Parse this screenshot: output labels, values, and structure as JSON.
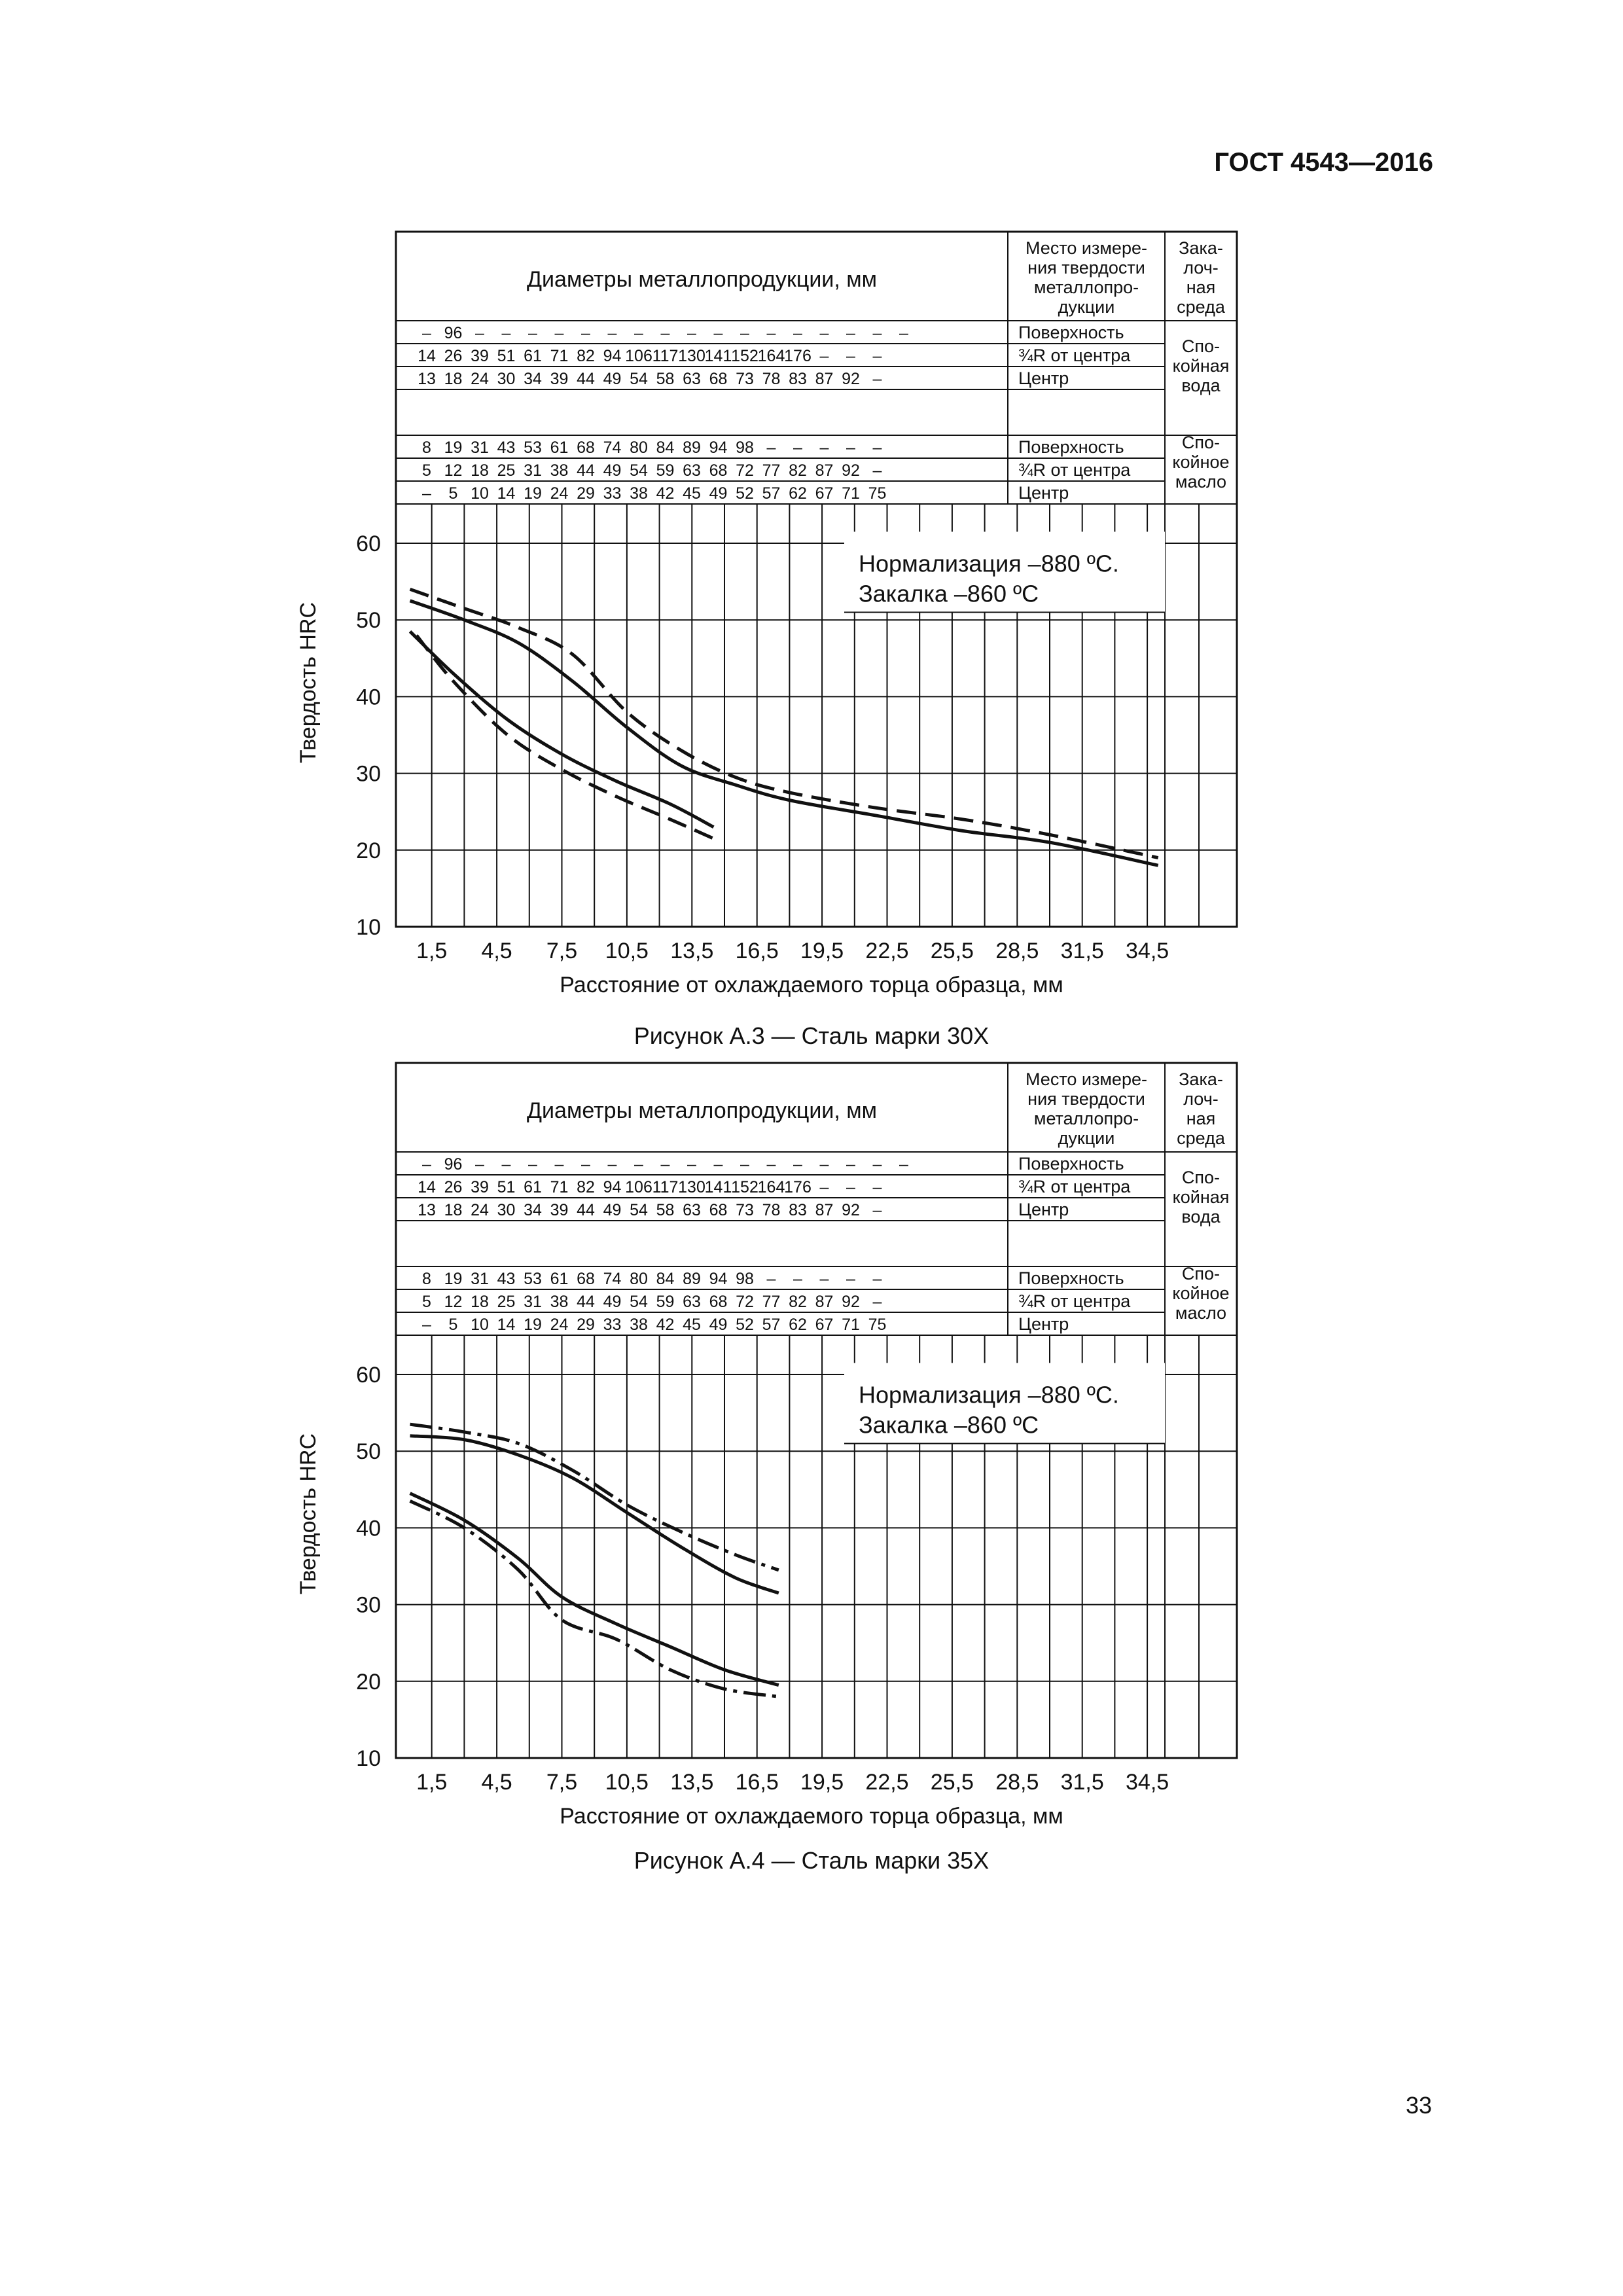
{
  "document_code": "ГОСТ 4543—2016",
  "page_number": "33",
  "figures": [
    {
      "caption": "Рисунок А.3 — Сталь марки 30Х",
      "table": {
        "header_diameters": "Диаметры металлопродукции, мм",
        "header_location": [
          "Место измере-",
          "ния твердости",
          "металлопро-",
          "дукции"
        ],
        "header_medium": [
          "Зака-",
          "лоч-",
          "ная",
          "среда"
        ],
        "water_rows": [
          {
            "values": [
              "–",
              "96",
              "–",
              "–",
              "–",
              "–",
              "–",
              "–",
              "–",
              "–",
              "–",
              "–",
              "–",
              "–",
              "–",
              "–",
              "–",
              "–",
              "–"
            ],
            "location": "Поверхность"
          },
          {
            "values": [
              "14",
              "26",
              "39",
              "51",
              "61",
              "71",
              "82",
              "94",
              "106",
              "117",
              "130",
              "141",
              "152",
              "164",
              "176",
              "–",
              "–",
              "–"
            ],
            "location": "¾R от центра"
          },
          {
            "values": [
              "13",
              "18",
              "24",
              "30",
              "34",
              "39",
              "44",
              "49",
              "54",
              "58",
              "63",
              "68",
              "73",
              "78",
              "83",
              "87",
              "92",
              "–"
            ],
            "location": "Центр"
          }
        ],
        "water_medium": [
          "Спо-",
          "койная",
          "вода"
        ],
        "oil_rows": [
          {
            "values": [
              "8",
              "19",
              "31",
              "43",
              "53",
              "61",
              "68",
              "74",
              "80",
              "84",
              "89",
              "94",
              "98",
              "–",
              "–",
              "–",
              "–",
              "–"
            ],
            "location": "Поверхность"
          },
          {
            "values": [
              "5",
              "12",
              "18",
              "25",
              "31",
              "38",
              "44",
              "49",
              "54",
              "59",
              "63",
              "68",
              "72",
              "77",
              "82",
              "87",
              "92",
              "–"
            ],
            "location": "¾R от центра"
          },
          {
            "values": [
              "–",
              "5",
              "10",
              "14",
              "19",
              "24",
              "29",
              "33",
              "38",
              "42",
              "45",
              "49",
              "52",
              "57",
              "62",
              "67",
              "71",
              "75"
            ],
            "location": "Центр"
          }
        ],
        "oil_medium": [
          "Спо-",
          "койное",
          "масло"
        ]
      },
      "annotation": [
        "Нормализация –880 ºC.",
        "Закалка –860 ºC"
      ],
      "chart_data": {
        "type": "line",
        "ylabel": "Твердость HRC",
        "xlabel": "Расстояние от охлаждаемого торца образца, мм",
        "x_ticks": [
          "1,5",
          "4,5",
          "7,5",
          "10,5",
          "13,5",
          "16,5",
          "19,5",
          "22,5",
          "25,5",
          "28,5",
          "31,5",
          "34,5"
        ],
        "y_ticks": [
          "10",
          "20",
          "30",
          "40",
          "50",
          "60"
        ],
        "xlim": [
          0,
          37.5
        ],
        "ylim": [
          10,
          60
        ],
        "series": [
          {
            "style": "dashed",
            "points": [
              [
                0.5,
                54
              ],
              [
                3,
                51.5
              ],
              [
                5.5,
                49
              ],
              [
                8,
                45.5
              ],
              [
                10.5,
                38
              ],
              [
                13,
                33
              ],
              [
                15.5,
                29.5
              ],
              [
                18,
                27.5
              ],
              [
                22,
                25.5
              ],
              [
                26,
                24
              ],
              [
                30,
                22
              ],
              [
                35,
                19
              ]
            ]
          },
          {
            "style": "solid",
            "points": [
              [
                0.5,
                52.5
              ],
              [
                3,
                50
              ],
              [
                5.5,
                47
              ],
              [
                8,
                42
              ],
              [
                10.5,
                36
              ],
              [
                13,
                31
              ],
              [
                15.5,
                28.5
              ],
              [
                18,
                26.5
              ],
              [
                22,
                24.5
              ],
              [
                26,
                22.5
              ],
              [
                30,
                21
              ],
              [
                35,
                18
              ]
            ]
          },
          {
            "style": "solid",
            "points": [
              [
                0.5,
                48.5
              ],
              [
                2.5,
                43
              ],
              [
                5,
                37
              ],
              [
                7.5,
                32.5
              ],
              [
                10,
                29
              ],
              [
                12.5,
                26
              ],
              [
                14.5,
                23
              ]
            ]
          },
          {
            "style": "dashed",
            "points": [
              [
                0.8,
                48
              ],
              [
                2.5,
                42
              ],
              [
                5,
                35
              ],
              [
                7.5,
                30.5
              ],
              [
                10,
                27
              ],
              [
                12.5,
                24
              ],
              [
                14.5,
                21.5
              ]
            ]
          }
        ]
      }
    },
    {
      "caption": "Рисунок А.4 — Сталь марки 35Х",
      "table": {
        "header_diameters": "Диаметры металлопродукции, мм",
        "header_location": [
          "Место измере-",
          "ния твердости",
          "металлопро-",
          "дукции"
        ],
        "header_medium": [
          "Зака-",
          "лоч-",
          "ная",
          "среда"
        ],
        "water_rows": [
          {
            "values": [
              "–",
              "96",
              "–",
              "–",
              "–",
              "–",
              "–",
              "–",
              "–",
              "–",
              "–",
              "–",
              "–",
              "–",
              "–",
              "–",
              "–",
              "–",
              "–"
            ],
            "location": "Поверхность"
          },
          {
            "values": [
              "14",
              "26",
              "39",
              "51",
              "61",
              "71",
              "82",
              "94",
              "106",
              "117",
              "130",
              "141",
              "152",
              "164",
              "176",
              "–",
              "–",
              "–"
            ],
            "location": "¾R от центра"
          },
          {
            "values": [
              "13",
              "18",
              "24",
              "30",
              "34",
              "39",
              "44",
              "49",
              "54",
              "58",
              "63",
              "68",
              "73",
              "78",
              "83",
              "87",
              "92",
              "–"
            ],
            "location": "Центр"
          }
        ],
        "water_medium": [
          "Спо-",
          "койная",
          "вода"
        ],
        "oil_rows": [
          {
            "values": [
              "8",
              "19",
              "31",
              "43",
              "53",
              "61",
              "68",
              "74",
              "80",
              "84",
              "89",
              "94",
              "98",
              "–",
              "–",
              "–",
              "–",
              "–"
            ],
            "location": "Поверхность"
          },
          {
            "values": [
              "5",
              "12",
              "18",
              "25",
              "31",
              "38",
              "44",
              "49",
              "54",
              "59",
              "63",
              "68",
              "72",
              "77",
              "82",
              "87",
              "92",
              "–"
            ],
            "location": "¾R от центра"
          },
          {
            "values": [
              "–",
              "5",
              "10",
              "14",
              "19",
              "24",
              "29",
              "33",
              "38",
              "42",
              "45",
              "49",
              "52",
              "57",
              "62",
              "67",
              "71",
              "75"
            ],
            "location": "Центр"
          }
        ],
        "oil_medium": [
          "Спо-",
          "койное",
          "масло"
        ]
      },
      "annotation": [
        "Нормализация –880 ºC.",
        "Закалка –860 ºC"
      ],
      "chart_data": {
        "type": "line",
        "ylabel": "Твердость HRC",
        "xlabel": "Расстояние от охлаждаемого торца образца, мм",
        "x_ticks": [
          "1,5",
          "4,5",
          "7,5",
          "10,5",
          "13,5",
          "16,5",
          "19,5",
          "22,5",
          "25,5",
          "28,5",
          "31,5",
          "34,5"
        ],
        "y_ticks": [
          "10",
          "20",
          "30",
          "40",
          "50",
          "60"
        ],
        "xlim": [
          0,
          37.5
        ],
        "ylim": [
          10,
          60
        ],
        "series": [
          {
            "style": "dashdot",
            "points": [
              [
                0.5,
                53.5
              ],
              [
                3,
                52.5
              ],
              [
                5.5,
                51
              ],
              [
                8,
                47.5
              ],
              [
                10.5,
                43
              ],
              [
                13,
                39.5
              ],
              [
                15.5,
                36.5
              ],
              [
                17.5,
                34.5
              ]
            ]
          },
          {
            "style": "solid",
            "points": [
              [
                0.5,
                52
              ],
              [
                3,
                51.5
              ],
              [
                5.5,
                49.5
              ],
              [
                8,
                46.5
              ],
              [
                10.5,
                42
              ],
              [
                13,
                37.5
              ],
              [
                15.5,
                33.5
              ],
              [
                17.5,
                31.5
              ]
            ]
          },
          {
            "style": "solid",
            "points": [
              [
                0.5,
                44.5
              ],
              [
                3,
                41
              ],
              [
                5.5,
                36
              ],
              [
                7.5,
                31
              ],
              [
                10,
                27.5
              ],
              [
                12.5,
                24.5
              ],
              [
                15,
                21.5
              ],
              [
                17.5,
                19.5
              ]
            ]
          },
          {
            "style": "dashdot",
            "points": [
              [
                0.5,
                43.5
              ],
              [
                3,
                40
              ],
              [
                5.5,
                34.5
              ],
              [
                7.5,
                28
              ],
              [
                10,
                25.5
              ],
              [
                12.5,
                21.5
              ],
              [
                15,
                19
              ],
              [
                17.5,
                18
              ]
            ]
          }
        ]
      }
    }
  ]
}
